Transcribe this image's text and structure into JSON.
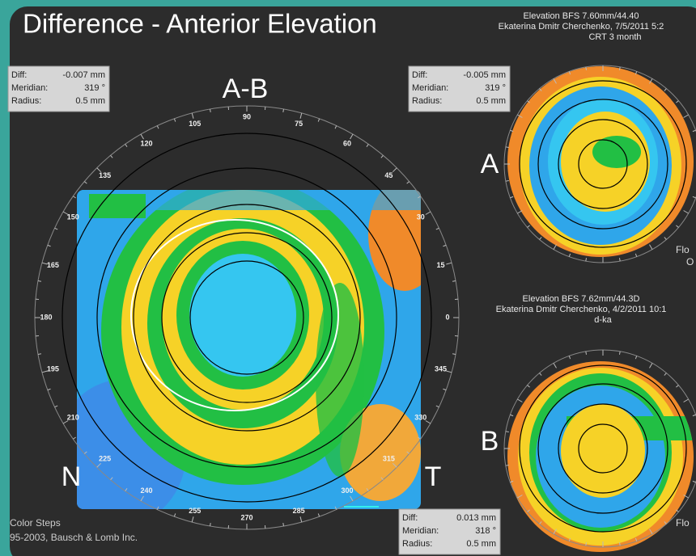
{
  "title": "Difference - Anterior Elevation",
  "header_top": [
    "Elevation BFS  7.60mm/44.40",
    "Ekaterina Dmitr Cherchenko, 7/5/2011 5:2",
    "CRT 3 month"
  ],
  "header_mid": [
    "Elevation BFS  7.62mm/44.3D",
    "Ekaterina Dmitr Cherchenko, 4/2/2011 10:1",
    "d-ka"
  ],
  "info_boxes": [
    {
      "diff_label": "Diff:",
      "diff": "-0.007 mm",
      "meridian_label": "Meridian:",
      "meridian": "319 °",
      "radius_label": "Radius:",
      "radius": "0.5 mm"
    },
    {
      "diff_label": "Diff:",
      "diff": "-0.005 mm",
      "meridian_label": "Meridian:",
      "meridian": "319 °",
      "radius_label": "Radius:",
      "radius": "0.5 mm"
    },
    {
      "diff_label": "Diff:",
      "diff": "0.013 mm",
      "meridian_label": "Meridian:",
      "meridian": "318 °",
      "radius_label": "Radius:",
      "radius": "0.5 mm"
    }
  ],
  "map_labels": {
    "main": "A-B",
    "a": "A",
    "b": "B",
    "nasal": "N",
    "temporal": "T"
  },
  "angle_labels": [
    "0",
    "15",
    "30",
    "45",
    "60",
    "75",
    "90",
    "105",
    "120",
    "135",
    "150",
    "165",
    "180",
    "195",
    "210",
    "225",
    "240",
    "255",
    "270",
    "285",
    "300",
    "315",
    "330",
    "345"
  ],
  "side_labels": [
    "Flo",
    "O",
    "Flo"
  ],
  "footer": [
    "Color Steps",
    "95-2003, Bausch & Lomb Inc."
  ]
}
